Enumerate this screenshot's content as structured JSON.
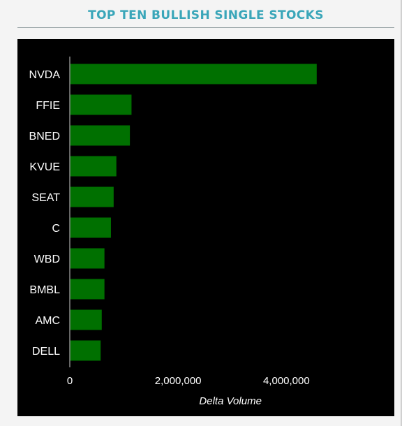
{
  "header": {
    "title": "TOP TEN BULLISH SINGLE STOCKS"
  },
  "chart_data": {
    "type": "bar",
    "orientation": "horizontal",
    "categories": [
      "NVDA",
      "FFIE",
      "BNED",
      "KVUE",
      "SEAT",
      "C",
      "WBD",
      "BMBL",
      "AMC",
      "DELL"
    ],
    "values": [
      4560000,
      1140000,
      1110000,
      860000,
      810000,
      760000,
      640000,
      640000,
      590000,
      570000
    ],
    "xlabel": "Delta Volume",
    "ylabel": "",
    "xlim": [
      0,
      5800000
    ],
    "xticks": [
      0,
      2000000,
      4000000
    ],
    "xtick_labels": [
      "0",
      "2,000,000",
      "4,000,000"
    ],
    "bar_color": "#007000",
    "background": "#000000",
    "grid": false,
    "legend": "none"
  }
}
